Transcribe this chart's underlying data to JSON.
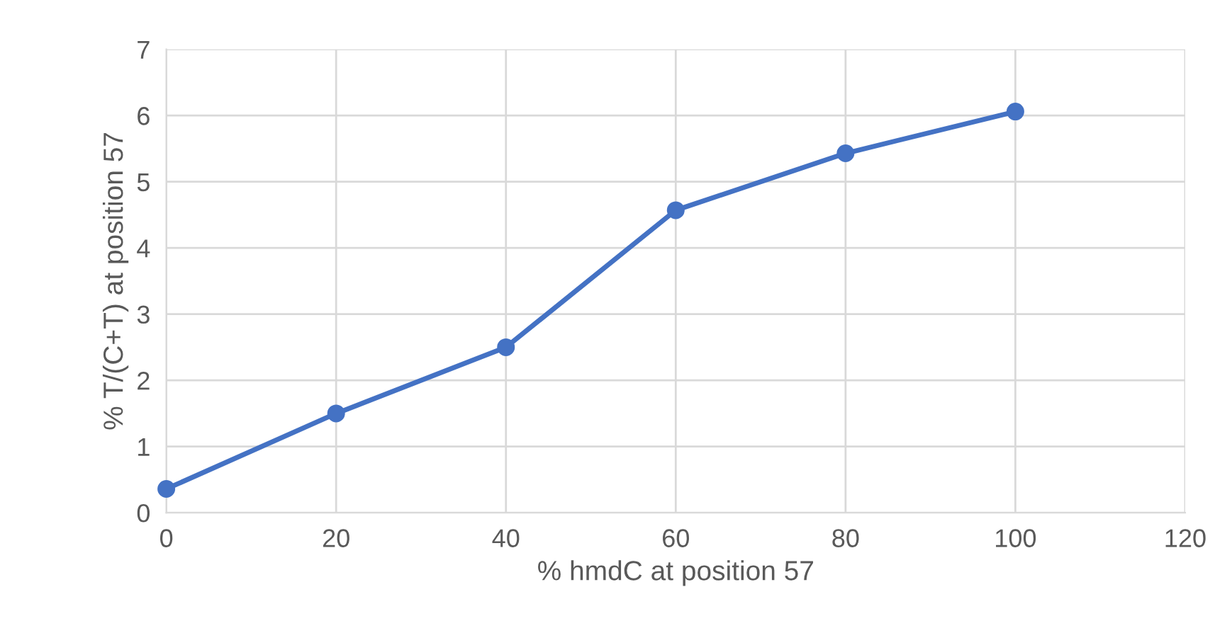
{
  "chart_data": {
    "type": "line",
    "xlabel": "% hmdC at position 57",
    "ylabel": "% T/(C+T) at position 57",
    "x": [
      0,
      20,
      40,
      60,
      80,
      100
    ],
    "series": [
      {
        "color": "#4472c4",
        "values": [
          0.36,
          1.5,
          2.5,
          4.57,
          5.43,
          6.06
        ]
      }
    ],
    "xlim": [
      0,
      120
    ],
    "xticks": [
      0,
      20,
      40,
      60,
      80,
      100,
      120
    ],
    "ylim": [
      0,
      7
    ],
    "yticks": [
      0,
      1,
      2,
      3,
      4,
      5,
      6,
      7
    ],
    "grid": true,
    "marker": "circle",
    "line_style": "solid"
  }
}
